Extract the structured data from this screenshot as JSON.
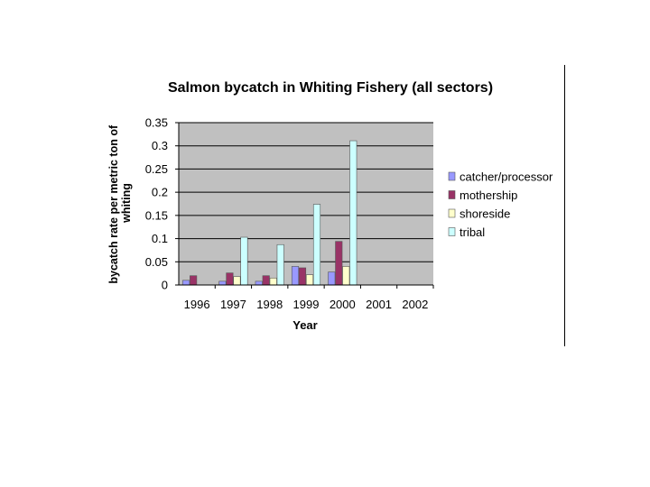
{
  "chart_data": {
    "type": "bar",
    "title": "Salmon bycatch in Whiting Fishery (all sectors)",
    "xlabel": "Year",
    "ylabel": "bycatch rate per metric ton of whiting",
    "categories": [
      "1996",
      "1997",
      "1998",
      "1999",
      "2000",
      "2001",
      "2002"
    ],
    "ylim": [
      0,
      0.35
    ],
    "yticks": [
      0,
      0.05,
      0.1,
      0.15,
      0.2,
      0.25,
      0.3,
      0.35
    ],
    "ytick_labels": [
      "0",
      "0.05",
      "0.1",
      "0.15",
      "0.2",
      "0.25",
      "0.3",
      "0.35"
    ],
    "grid": "major horizontal",
    "legend_position": "right",
    "series": [
      {
        "name": "catcher/processor",
        "color": "#9999ff",
        "values": [
          0.01,
          0.008,
          0.008,
          0.04,
          0.028,
          null,
          null
        ]
      },
      {
        "name": "mothership",
        "color": "#993366",
        "values": [
          0.02,
          0.026,
          0.02,
          0.037,
          0.094,
          null,
          null
        ]
      },
      {
        "name": "shoreside",
        "color": "#ffffcc",
        "values": [
          null,
          0.018,
          0.015,
          0.022,
          0.04,
          null,
          null
        ]
      },
      {
        "name": "tribal",
        "color": "#ccffff",
        "values": [
          null,
          0.103,
          0.087,
          0.174,
          0.311,
          null,
          null
        ]
      }
    ],
    "plot_background": "#c0c0c0"
  }
}
